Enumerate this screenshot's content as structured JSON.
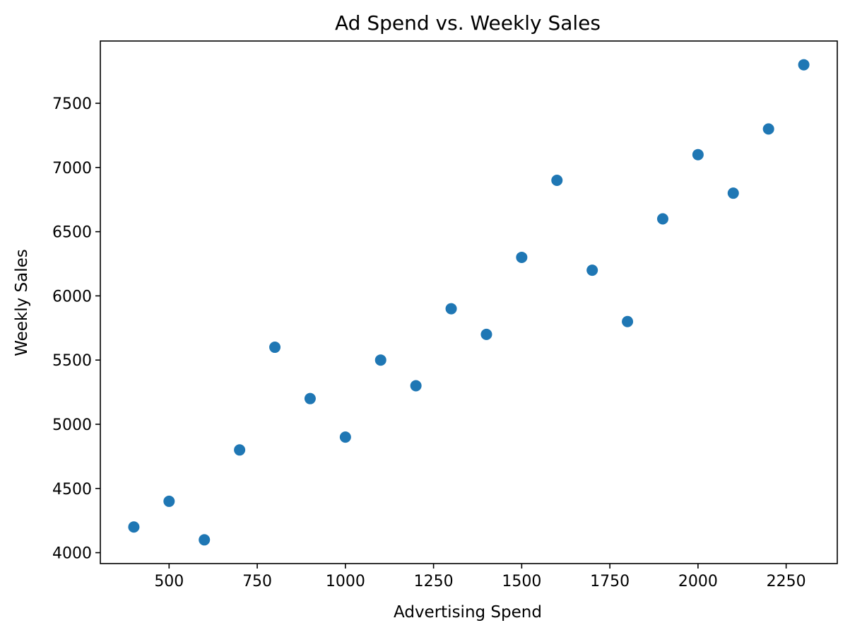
{
  "chart_data": {
    "type": "scatter",
    "title": "Ad Spend vs. Weekly Sales",
    "xlabel": "Advertising Spend",
    "ylabel": "Weekly Sales",
    "xlim": [
      305,
      2395
    ],
    "ylim": [
      3915,
      7985
    ],
    "xticks": [
      500,
      750,
      1000,
      1250,
      1500,
      1750,
      2000,
      2250
    ],
    "yticks": [
      4000,
      4500,
      5000,
      5500,
      6000,
      6500,
      7000,
      7500
    ],
    "grid": false,
    "marker_color": "#1f77b4",
    "points": [
      {
        "x": 400,
        "y": 4200
      },
      {
        "x": 500,
        "y": 4400
      },
      {
        "x": 600,
        "y": 4100
      },
      {
        "x": 700,
        "y": 4800
      },
      {
        "x": 800,
        "y": 5600
      },
      {
        "x": 900,
        "y": 5200
      },
      {
        "x": 1000,
        "y": 4900
      },
      {
        "x": 1100,
        "y": 5500
      },
      {
        "x": 1200,
        "y": 5300
      },
      {
        "x": 1300,
        "y": 5900
      },
      {
        "x": 1400,
        "y": 5700
      },
      {
        "x": 1500,
        "y": 6300
      },
      {
        "x": 1600,
        "y": 6900
      },
      {
        "x": 1700,
        "y": 6200
      },
      {
        "x": 1800,
        "y": 5800
      },
      {
        "x": 1900,
        "y": 6600
      },
      {
        "x": 2000,
        "y": 7100
      },
      {
        "x": 2100,
        "y": 6800
      },
      {
        "x": 2200,
        "y": 7300
      },
      {
        "x": 2300,
        "y": 7800
      }
    ]
  }
}
